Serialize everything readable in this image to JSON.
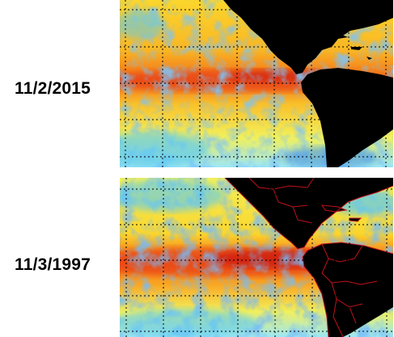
{
  "figure": {
    "panels": [
      {
        "date": "11/2/2015",
        "coast_outline": false
      },
      {
        "date": "11/3/1997",
        "coast_outline": true
      }
    ],
    "gridline_style": "dotted",
    "land_color": "#000000",
    "border_color": "#c0121a",
    "colormap": [
      "#3a3aa8",
      "#2f7fe0",
      "#58c9f5",
      "#9be7f6",
      "#f2f05a",
      "#fbd62c",
      "#f9a321",
      "#f26b18",
      "#e53014",
      "#c4110f"
    ]
  }
}
